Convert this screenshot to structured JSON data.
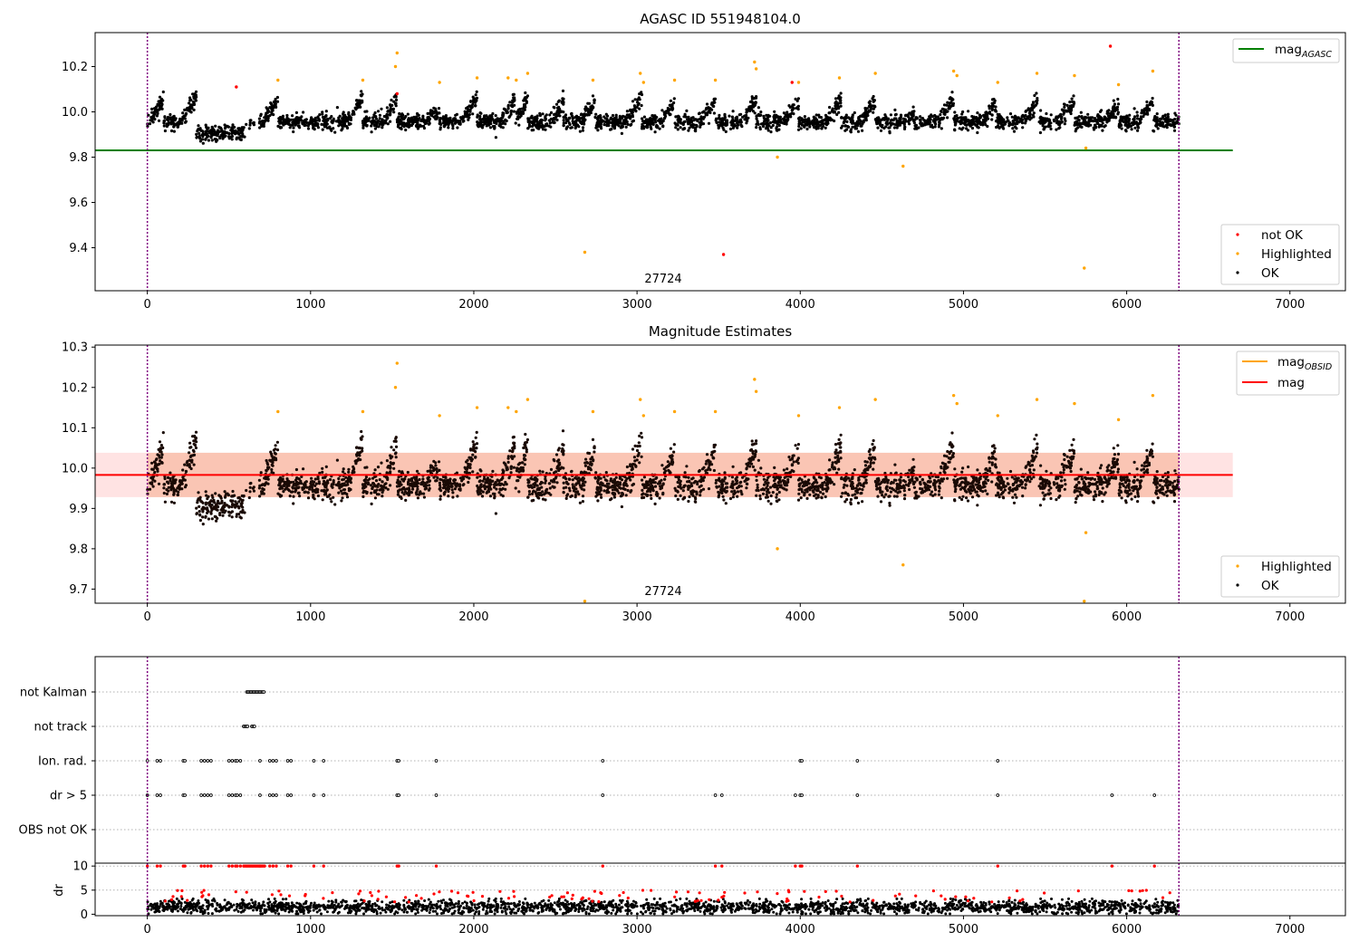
{
  "chart_data": [
    {
      "type": "scatter",
      "title": "AGASC ID 551948104.0",
      "xlim": [
        -320,
        7340
      ],
      "ylim": [
        9.21,
        10.35
      ],
      "xticks": [
        0,
        1000,
        2000,
        3000,
        4000,
        5000,
        6000,
        7000
      ],
      "yticks": [
        9.4,
        9.6,
        9.8,
        10.0,
        10.2
      ],
      "vlines": [
        0,
        6320
      ],
      "hline": {
        "name": "mag$_{AGASC}$",
        "label_main": "mag",
        "label_sub": "AGASC",
        "y": 9.83,
        "x_range": [
          -320,
          6650
        ],
        "color": "#008000"
      },
      "annotation": {
        "text": "27724",
        "x": 3160,
        "y": 9.24
      },
      "series": [
        {
          "name": "not OK",
          "color": "#ff0000",
          "points": [
            [
              545,
              10.11
            ],
            [
              1530,
              10.08
            ],
            [
              3530,
              9.37
            ],
            [
              3950,
              10.13
            ],
            [
              5900,
              10.29
            ]
          ]
        },
        {
          "name": "Highlighted",
          "color": "#ffa500",
          "points": [
            [
              800,
              10.14
            ],
            [
              1320,
              10.14
            ],
            [
              1530,
              10.26
            ],
            [
              1520,
              10.2
            ],
            [
              1790,
              10.13
            ],
            [
              2020,
              10.15
            ],
            [
              2210,
              10.15
            ],
            [
              2260,
              10.14
            ],
            [
              2330,
              10.17
            ],
            [
              2680,
              9.38
            ],
            [
              2730,
              10.14
            ],
            [
              3020,
              10.17
            ],
            [
              3040,
              10.13
            ],
            [
              3230,
              10.14
            ],
            [
              3480,
              10.14
            ],
            [
              3720,
              10.22
            ],
            [
              3730,
              10.19
            ],
            [
              3860,
              9.8
            ],
            [
              3990,
              10.13
            ],
            [
              4240,
              10.15
            ],
            [
              4460,
              10.17
            ],
            [
              4630,
              9.76
            ],
            [
              4940,
              10.18
            ],
            [
              4960,
              10.16
            ],
            [
              5210,
              10.13
            ],
            [
              5450,
              10.17
            ],
            [
              5680,
              10.16
            ],
            [
              5740,
              9.31
            ],
            [
              5750,
              9.84
            ],
            [
              5950,
              10.12
            ],
            [
              6160,
              10.18
            ]
          ]
        },
        {
          "name": "OK",
          "color": "#000000"
        }
      ],
      "legend_hline_position": "top-right",
      "legend_points_position": "bottom-right"
    },
    {
      "type": "scatter",
      "title": "Magnitude Estimates",
      "xlim": [
        -320,
        7340
      ],
      "ylim": [
        9.665,
        10.305
      ],
      "xticks": [
        0,
        1000,
        2000,
        3000,
        4000,
        5000,
        6000,
        7000
      ],
      "yticks": [
        9.7,
        9.8,
        9.9,
        10.0,
        10.1,
        10.2,
        10.3
      ],
      "vlines": [
        0,
        6320
      ],
      "band": {
        "y0": 9.928,
        "y1": 10.038,
        "x_range": [
          -320,
          6650
        ],
        "color": "#ffc0c0"
      },
      "inner_band": {
        "y0": 9.928,
        "y1": 10.038,
        "x_range": [
          0,
          6320
        ],
        "color": "#f5a07a"
      },
      "lines": [
        {
          "name": "mag$_{OBSID}$",
          "label_main": "mag",
          "label_sub": "OBSID",
          "color": "#ffa500"
        },
        {
          "name": "mag",
          "label_main": "mag",
          "y": 9.983,
          "x_range": [
            -320,
            6650
          ],
          "color": "#ff0000"
        }
      ],
      "annotation": {
        "text": "27724",
        "x": 3160,
        "y": 9.685
      },
      "series": [
        {
          "name": "Highlighted",
          "color": "#ffa500"
        },
        {
          "name": "OK",
          "color": "#000000"
        }
      ],
      "legend_lines_position": "top-right",
      "legend_points_position": "bottom-right"
    },
    {
      "type": "scatter",
      "xlim": [
        -320,
        7340
      ],
      "yticklabels": [
        "not Kalman",
        "not track",
        "Ion. rad.",
        "dr > 5",
        "OBS not OK"
      ],
      "vlines": [
        0,
        6320
      ],
      "flags": {
        "not Kalman": [
          [
            610,
            720
          ]
        ],
        "not track": [
          [
            590,
            620
          ],
          [
            640,
            660
          ]
        ],
        "Ion. rad.": [
          0,
          60,
          80,
          220,
          230,
          330,
          350,
          370,
          390,
          500,
          520,
          540,
          550,
          570,
          690,
          750,
          770,
          790,
          860,
          880,
          1020,
          1080,
          1530,
          1540,
          1770,
          2790,
          4000,
          4010,
          4350,
          5210
        ],
        "dr > 5": [
          0,
          60,
          80,
          220,
          230,
          330,
          350,
          370,
          390,
          500,
          520,
          540,
          550,
          570,
          690,
          750,
          770,
          790,
          860,
          880,
          1020,
          1080,
          1530,
          1540,
          1770,
          2790,
          3480,
          3520,
          3970,
          4000,
          4010,
          4350,
          5210,
          5910,
          6170
        ],
        "OBS not OK": []
      }
    },
    {
      "type": "scatter",
      "ylabel": "dr",
      "xlim": [
        -320,
        7340
      ],
      "ylim": [
        -0.3,
        10.6
      ],
      "xticks": [
        0,
        1000,
        2000,
        3000,
        4000,
        5000,
        6000,
        7000
      ],
      "yticks": [
        0,
        5,
        10
      ],
      "vlines": [
        0,
        6320
      ],
      "series": [
        {
          "name": "dr (OK)",
          "color": "#000000"
        },
        {
          "name": "dr (flagged)",
          "color": "#ff0000"
        }
      ]
    }
  ],
  "legends": {
    "top": {
      "lines": [
        "mag"
      ],
      "points": [
        "not OK",
        "Highlighted",
        "OK"
      ]
    },
    "middle": {
      "lines": [
        "mag",
        "mag"
      ],
      "points": [
        "Highlighted",
        "OK"
      ]
    }
  }
}
